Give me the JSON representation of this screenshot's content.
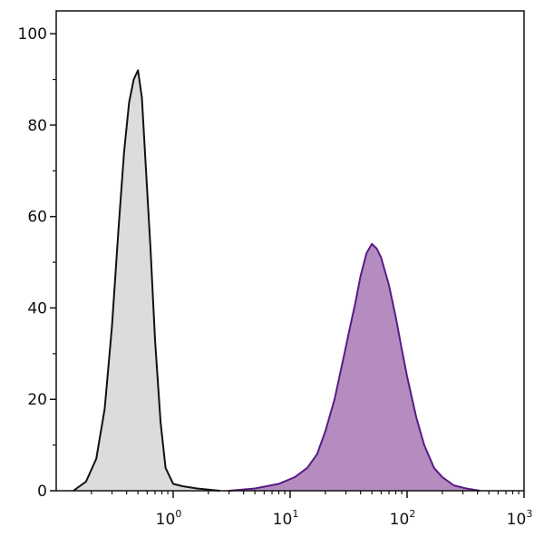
{
  "chart_data": {
    "type": "area",
    "title": "",
    "xlabel": "",
    "ylabel": "",
    "xscale": "log",
    "xlim": [
      0.1,
      1000
    ],
    "ylim": [
      0,
      105
    ],
    "grid": false,
    "legend": "none",
    "y_ticks": [
      0,
      20,
      40,
      60,
      80,
      100
    ],
    "y_tick_labels": [
      "0",
      "20",
      "40",
      "60",
      "80",
      "100"
    ],
    "x_ticks": [
      1,
      10,
      100,
      1000
    ],
    "x_tick_labels": [
      {
        "base": "10",
        "exp": "0"
      },
      {
        "base": "10",
        "exp": "1"
      },
      {
        "base": "10",
        "exp": "2"
      },
      {
        "base": "10",
        "exp": "3"
      }
    ],
    "series": [
      {
        "color": "#111111",
        "fill": "#dcdcdc",
        "x": [
          0.14,
          0.18,
          0.22,
          0.26,
          0.3,
          0.34,
          0.38,
          0.42,
          0.46,
          0.5,
          0.54,
          0.58,
          0.64,
          0.7,
          0.78,
          0.86,
          1.0,
          1.2,
          1.6,
          2.5
        ],
        "y": [
          0,
          2,
          7,
          18,
          36,
          57,
          74,
          85,
          90,
          92,
          86,
          72,
          53,
          33,
          15,
          5,
          1.5,
          1,
          0.5,
          0
        ]
      },
      {
        "color": "#5b1a86",
        "fill": "#b58cc0",
        "x": [
          3,
          5,
          8,
          11,
          14,
          17,
          20,
          24,
          28,
          32,
          36,
          40,
          45,
          50,
          55,
          60,
          70,
          80,
          90,
          100,
          120,
          140,
          170,
          200,
          250,
          320,
          420
        ],
        "y": [
          0,
          0.5,
          1.5,
          3,
          5,
          8,
          13,
          20,
          28,
          35,
          41,
          47,
          52,
          54,
          53,
          51,
          45,
          38,
          31,
          25,
          16,
          10,
          5,
          3,
          1.2,
          0.5,
          0
        ]
      }
    ]
  }
}
